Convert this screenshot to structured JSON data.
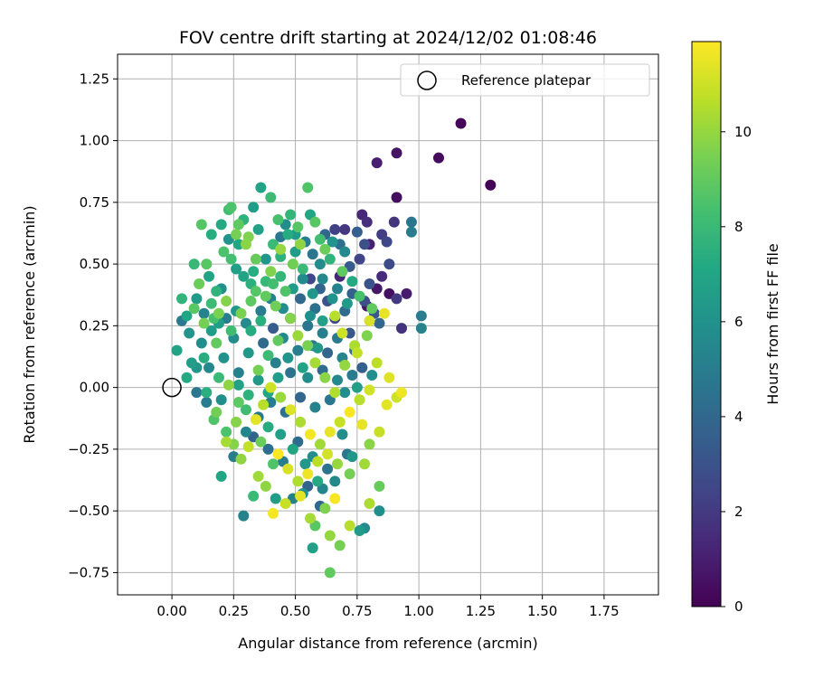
{
  "chart_data": {
    "type": "scatter",
    "title": "FOV centre drift starting at 2024/12/02 01:08:46",
    "xlabel": "Angular distance from reference (arcmin)",
    "ylabel": "Rotation from reference (arcmin)",
    "xlim": [
      -0.22,
      1.97
    ],
    "ylim": [
      -0.84,
      1.35
    ],
    "xticks": [
      "0.00",
      "0.25",
      "0.50",
      "0.75",
      "1.00",
      "1.25",
      "1.50",
      "1.75"
    ],
    "xtick_values": [
      0,
      0.25,
      0.5,
      0.75,
      1.0,
      1.25,
      1.5,
      1.75
    ],
    "yticks": [
      "−0.75",
      "−0.50",
      "−0.25",
      "0.00",
      "0.25",
      "0.50",
      "0.75",
      "1.00",
      "1.25"
    ],
    "ytick_values": [
      -0.75,
      -0.5,
      -0.25,
      0,
      0.25,
      0.5,
      0.75,
      1.0,
      1.25
    ],
    "grid": true,
    "legend": {
      "placement": "top-right",
      "label": "Reference platepar"
    },
    "reference_point": {
      "x": 0.0,
      "y": 0.0
    },
    "colorbar": {
      "label": "Hours from first FF file",
      "colormap": "viridis",
      "min": 0,
      "max": 11.9,
      "ticks": [
        "0",
        "2",
        "4",
        "6",
        "8",
        "10"
      ],
      "tick_values": [
        0,
        2,
        4,
        6,
        8,
        10
      ]
    },
    "points": [
      [
        1.29,
        0.82,
        0.1
      ],
      [
        1.17,
        1.07,
        0.2
      ],
      [
        1.08,
        0.93,
        0.3
      ],
      [
        0.91,
        0.95,
        0.6
      ],
      [
        0.83,
        0.91,
        1.0
      ],
      [
        0.91,
        0.77,
        0.4
      ],
      [
        0.77,
        0.7,
        1.3
      ],
      [
        0.79,
        0.67,
        1.6
      ],
      [
        0.9,
        0.67,
        1.8
      ],
      [
        0.85,
        0.62,
        2.2
      ],
      [
        0.87,
        0.59,
        2.6
      ],
      [
        0.78,
        0.58,
        2.9
      ],
      [
        0.85,
        0.45,
        1.5
      ],
      [
        0.83,
        0.4,
        0.7
      ],
      [
        0.88,
        0.38,
        0.5
      ],
      [
        0.95,
        0.38,
        0.9
      ],
      [
        0.91,
        0.36,
        2.0
      ],
      [
        0.8,
        0.42,
        3.1
      ],
      [
        0.76,
        0.52,
        2.4
      ],
      [
        0.72,
        0.49,
        3.4
      ],
      [
        0.68,
        0.45,
        1.2
      ],
      [
        0.7,
        0.64,
        1.9
      ],
      [
        0.66,
        0.64,
        2.3
      ],
      [
        0.75,
        0.63,
        3.6
      ],
      [
        0.97,
        0.67,
        4.6
      ],
      [
        0.97,
        0.63,
        4.9
      ],
      [
        1.01,
        0.29,
        5.0
      ],
      [
        1.01,
        0.24,
        5.3
      ],
      [
        0.8,
        0.58,
        1.1
      ],
      [
        0.88,
        0.5,
        2.7
      ],
      [
        0.93,
        0.24,
        1.7
      ],
      [
        0.82,
        0.3,
        3.3
      ],
      [
        0.79,
        0.33,
        0.8
      ],
      [
        0.84,
        0.26,
        3.9
      ],
      [
        0.78,
        0.35,
        2.8
      ],
      [
        0.73,
        0.38,
        3.7
      ],
      [
        0.7,
        0.31,
        4.2
      ],
      [
        0.63,
        0.35,
        3.0
      ],
      [
        0.66,
        0.28,
        2.6
      ],
      [
        0.6,
        0.4,
        3.8
      ],
      [
        0.58,
        0.32,
        4.4
      ],
      [
        0.56,
        0.44,
        2.5
      ],
      [
        0.52,
        0.36,
        4.0
      ],
      [
        0.48,
        0.28,
        3.5
      ],
      [
        0.55,
        0.25,
        4.6
      ],
      [
        0.61,
        0.22,
        5.1
      ],
      [
        0.67,
        0.2,
        4.8
      ],
      [
        0.72,
        0.22,
        3.2
      ],
      [
        0.74,
        0.15,
        4.3
      ],
      [
        0.69,
        0.12,
        5.4
      ],
      [
        0.63,
        0.14,
        3.9
      ],
      [
        0.57,
        0.17,
        4.7
      ],
      [
        0.51,
        0.15,
        5.0
      ],
      [
        0.45,
        0.2,
        5.6
      ],
      [
        0.41,
        0.24,
        3.4
      ],
      [
        0.37,
        0.18,
        4.1
      ],
      [
        0.42,
        0.1,
        5.2
      ],
      [
        0.48,
        0.06,
        4.5
      ],
      [
        0.55,
        0.04,
        5.8
      ],
      [
        0.61,
        0.07,
        4.2
      ],
      [
        0.67,
        0.03,
        5.5
      ],
      [
        0.73,
        0.05,
        4.9
      ],
      [
        0.77,
        0.08,
        3.6
      ],
      [
        0.7,
        -0.02,
        5.9
      ],
      [
        0.64,
        -0.05,
        4.6
      ],
      [
        0.58,
        -0.08,
        5.3
      ],
      [
        0.52,
        -0.04,
        3.9
      ],
      [
        0.46,
        -0.1,
        4.4
      ],
      [
        0.4,
        -0.06,
        5.1
      ],
      [
        0.35,
        -0.12,
        4.8
      ],
      [
        0.33,
        -0.2,
        3.7
      ],
      [
        0.39,
        -0.25,
        4.3
      ],
      [
        0.45,
        -0.3,
        5.0
      ],
      [
        0.51,
        -0.22,
        4.1
      ],
      [
        0.57,
        -0.28,
        5.7
      ],
      [
        0.63,
        -0.33,
        4.5
      ],
      [
        0.55,
        -0.4,
        3.8
      ],
      [
        0.49,
        -0.45,
        5.2
      ],
      [
        0.6,
        -0.48,
        4.0
      ],
      [
        0.66,
        -0.38,
        5.5
      ],
      [
        0.71,
        -0.27,
        4.6
      ],
      [
        0.29,
        -0.52,
        5.3
      ],
      [
        0.84,
        -0.5,
        5.9
      ],
      [
        0.78,
        -0.57,
        5.6
      ],
      [
        0.25,
        -0.28,
        4.9
      ],
      [
        0.3,
        -0.18,
        5.4
      ],
      [
        0.2,
        -0.05,
        5.8
      ],
      [
        0.14,
        -0.06,
        5.0
      ],
      [
        0.1,
        -0.02,
        4.7
      ],
      [
        0.15,
        0.08,
        5.5
      ],
      [
        0.21,
        0.12,
        6.0
      ],
      [
        0.27,
        0.06,
        5.2
      ],
      [
        0.31,
        0.14,
        6.3
      ],
      [
        0.25,
        0.2,
        5.7
      ],
      [
        0.19,
        0.26,
        6.6
      ],
      [
        0.13,
        0.3,
        5.3
      ],
      [
        0.07,
        0.22,
        6.1
      ],
      [
        0.04,
        0.27,
        4.8
      ],
      [
        0.02,
        0.15,
        6.9
      ],
      [
        0.06,
        0.04,
        7.2
      ],
      [
        0.1,
        0.36,
        6.4
      ],
      [
        0.15,
        0.45,
        7.0
      ],
      [
        0.2,
        0.4,
        5.9
      ],
      [
        0.26,
        0.48,
        6.7
      ],
      [
        0.32,
        0.42,
        7.5
      ],
      [
        0.38,
        0.52,
        6.2
      ],
      [
        0.44,
        0.45,
        7.8
      ],
      [
        0.5,
        0.55,
        6.5
      ],
      [
        0.47,
        0.62,
        7.3
      ],
      [
        0.41,
        0.58,
        8.0
      ],
      [
        0.35,
        0.64,
        6.8
      ],
      [
        0.29,
        0.68,
        7.6
      ],
      [
        0.23,
        0.72,
        8.2
      ],
      [
        0.27,
        0.58,
        7.1
      ],
      [
        0.21,
        0.55,
        8.5
      ],
      [
        0.16,
        0.62,
        7.4
      ],
      [
        0.12,
        0.66,
        8.7
      ],
      [
        0.09,
        0.5,
        7.9
      ],
      [
        0.36,
        0.81,
        6.9
      ],
      [
        0.4,
        0.77,
        8.1
      ],
      [
        0.55,
        0.81,
        8.6
      ],
      [
        0.56,
        0.7,
        7.0
      ],
      [
        0.6,
        0.6,
        8.3
      ],
      [
        0.64,
        0.52,
        7.7
      ],
      [
        0.69,
        0.47,
        8.9
      ],
      [
        0.73,
        0.43,
        7.2
      ],
      [
        0.76,
        0.37,
        8.4
      ],
      [
        0.81,
        0.32,
        9.0
      ],
      [
        0.58,
        0.67,
        8.8
      ],
      [
        0.62,
        0.56,
        9.2
      ],
      [
        0.53,
        0.48,
        8.0
      ],
      [
        0.46,
        0.39,
        8.6
      ],
      [
        0.42,
        0.33,
        9.3
      ],
      [
        0.36,
        0.27,
        7.5
      ],
      [
        0.32,
        0.35,
        8.9
      ],
      [
        0.28,
        0.3,
        9.5
      ],
      [
        0.24,
        0.23,
        8.2
      ],
      [
        0.18,
        0.18,
        9.0
      ],
      [
        0.22,
        0.35,
        9.7
      ],
      [
        0.17,
        0.28,
        8.4
      ],
      [
        0.26,
        0.62,
        9.4
      ],
      [
        0.3,
        0.58,
        9.8
      ],
      [
        0.34,
        0.52,
        9.1
      ],
      [
        0.4,
        0.47,
        9.6
      ],
      [
        0.44,
        0.56,
        10.0
      ],
      [
        0.49,
        0.5,
        9.3
      ],
      [
        0.52,
        0.58,
        9.9
      ],
      [
        0.48,
        0.28,
        9.7
      ],
      [
        0.51,
        0.21,
        10.1
      ],
      [
        0.55,
        0.17,
        9.5
      ],
      [
        0.58,
        0.1,
        10.3
      ],
      [
        0.62,
        0.04,
        9.8
      ],
      [
        0.66,
        -0.02,
        10.5
      ],
      [
        0.7,
        0.09,
        10.0
      ],
      [
        0.74,
        0.17,
        10.4
      ],
      [
        0.79,
        0.21,
        9.6
      ],
      [
        0.66,
        0.29,
        10.6
      ],
      [
        0.69,
        0.22,
        11.0
      ],
      [
        0.75,
        0.14,
        10.8
      ],
      [
        0.8,
        0.27,
        11.2
      ],
      [
        0.86,
        0.3,
        11.5
      ],
      [
        0.83,
        0.1,
        10.7
      ],
      [
        0.88,
        0.04,
        11.3
      ],
      [
        0.93,
        -0.02,
        11.6
      ],
      [
        0.91,
        -0.04,
        11.0
      ],
      [
        0.87,
        -0.07,
        11.4
      ],
      [
        0.8,
        -0.01,
        11.1
      ],
      [
        0.76,
        -0.05,
        10.6
      ],
      [
        0.72,
        -0.1,
        11.8
      ],
      [
        0.68,
        -0.14,
        10.9
      ],
      [
        0.64,
        -0.18,
        11.5
      ],
      [
        0.6,
        -0.23,
        10.2
      ],
      [
        0.56,
        -0.19,
        11.7
      ],
      [
        0.52,
        -0.14,
        10.4
      ],
      [
        0.48,
        -0.09,
        11.3
      ],
      [
        0.44,
        -0.04,
        10.1
      ],
      [
        0.4,
        0.0,
        11.0
      ],
      [
        0.37,
        -0.07,
        10.6
      ],
      [
        0.34,
        -0.13,
        11.4
      ],
      [
        0.31,
        -0.24,
        10.8
      ],
      [
        0.28,
        -0.29,
        9.9
      ],
      [
        0.22,
        -0.22,
        10.3
      ],
      [
        0.26,
        -0.14,
        9.7
      ],
      [
        0.43,
        -0.27,
        11.9
      ],
      [
        0.47,
        -0.33,
        11.2
      ],
      [
        0.51,
        -0.38,
        10.5
      ],
      [
        0.55,
        -0.35,
        11.6
      ],
      [
        0.59,
        -0.3,
        10.7
      ],
      [
        0.63,
        -0.27,
        11.1
      ],
      [
        0.67,
        -0.31,
        10.0
      ],
      [
        0.72,
        -0.35,
        9.4
      ],
      [
        0.78,
        -0.31,
        10.2
      ],
      [
        0.8,
        -0.23,
        9.8
      ],
      [
        0.77,
        -0.15,
        11.5
      ],
      [
        0.84,
        -0.18,
        10.9
      ],
      [
        0.41,
        -0.51,
        11.7
      ],
      [
        0.46,
        -0.47,
        10.9
      ],
      [
        0.52,
        -0.44,
        11.4
      ],
      [
        0.56,
        -0.53,
        10.3
      ],
      [
        0.62,
        -0.49,
        9.6
      ],
      [
        0.66,
        -0.45,
        11.8
      ],
      [
        0.72,
        -0.56,
        10.6
      ],
      [
        0.64,
        -0.6,
        10.0
      ],
      [
        0.68,
        -0.64,
        9.4
      ],
      [
        0.58,
        -0.56,
        8.8
      ],
      [
        0.64,
        -0.75,
        9.0
      ],
      [
        0.57,
        -0.65,
        6.8
      ],
      [
        0.76,
        -0.58,
        6.4
      ],
      [
        0.84,
        -0.4,
        9.1
      ],
      [
        0.8,
        -0.47,
        10.4
      ],
      [
        0.2,
        -0.36,
        7.0
      ],
      [
        0.17,
        -0.13,
        8.6
      ],
      [
        0.23,
        0.01,
        9.9
      ],
      [
        0.27,
        -0.06,
        8.9
      ],
      [
        0.35,
        0.07,
        9.4
      ],
      [
        0.39,
        0.13,
        8.1
      ],
      [
        0.43,
        0.19,
        9.0
      ],
      [
        0.32,
        0.23,
        7.3
      ],
      [
        0.29,
        0.45,
        6.9
      ],
      [
        0.34,
        0.39,
        8.7
      ],
      [
        0.38,
        0.43,
        7.9
      ],
      [
        0.24,
        0.52,
        8.3
      ],
      [
        0.18,
        0.39,
        7.7
      ],
      [
        0.13,
        0.12,
        7.4
      ],
      [
        0.08,
        0.1,
        6.6
      ],
      [
        0.11,
        0.42,
        9.2
      ],
      [
        0.14,
        0.5,
        8.8
      ],
      [
        0.19,
        0.3,
        9.5
      ],
      [
        0.23,
        0.6,
        6.1
      ],
      [
        0.33,
        0.73,
        6.5
      ],
      [
        0.46,
        0.66,
        5.8
      ],
      [
        0.5,
        0.62,
        6.4
      ],
      [
        0.53,
        0.44,
        5.6
      ],
      [
        0.57,
        0.38,
        6.2
      ],
      [
        0.61,
        0.44,
        5.5
      ],
      [
        0.65,
        0.36,
        6.0
      ],
      [
        0.61,
        0.27,
        6.7
      ],
      [
        0.56,
        0.29,
        5.9
      ],
      [
        0.49,
        0.4,
        6.5
      ],
      [
        0.45,
        0.32,
        5.7
      ],
      [
        0.59,
        0.16,
        6.3
      ],
      [
        0.53,
        0.08,
        6.9
      ],
      [
        0.47,
        0.12,
        6.1
      ],
      [
        0.43,
        0.04,
        6.6
      ],
      [
        0.39,
        -0.02,
        7.1
      ],
      [
        0.35,
        0.03,
        6.4
      ],
      [
        0.31,
        -0.03,
        7.6
      ],
      [
        0.27,
        0.01,
        6.8
      ],
      [
        0.39,
        -0.16,
        7.3
      ],
      [
        0.44,
        -0.19,
        6.7
      ],
      [
        0.49,
        -0.25,
        7.0
      ],
      [
        0.54,
        -0.31,
        6.3
      ],
      [
        0.59,
        -0.38,
        7.2
      ],
      [
        0.42,
        -0.45,
        6.5
      ],
      [
        0.53,
        -0.43,
        5.9
      ],
      [
        0.61,
        -0.41,
        5.4
      ],
      [
        0.69,
        -0.19,
        5.8
      ],
      [
        0.73,
        -0.28,
        6.2
      ],
      [
        0.75,
        0.0,
        6.7
      ],
      [
        0.81,
        0.05,
        5.9
      ],
      [
        0.71,
        0.34,
        6.4
      ],
      [
        0.67,
        0.4,
        5.3
      ],
      [
        0.6,
        0.5,
        5.7
      ],
      [
        0.65,
        0.59,
        6.1
      ],
      [
        0.7,
        0.55,
        5.5
      ],
      [
        0.54,
        0.59,
        5.1
      ],
      [
        0.57,
        0.54,
        4.6
      ],
      [
        0.62,
        0.62,
        3.9
      ],
      [
        0.68,
        0.58,
        4.4
      ],
      [
        0.44,
        0.61,
        4.8
      ],
      [
        0.4,
        0.36,
        5.3
      ],
      [
        0.36,
        0.31,
        4.9
      ],
      [
        0.3,
        0.26,
        5.6
      ],
      [
        0.26,
        0.31,
        6.2
      ],
      [
        0.22,
        0.28,
        5.1
      ],
      [
        0.16,
        0.23,
        6.5
      ],
      [
        0.12,
        0.18,
        5.8
      ],
      [
        0.06,
        0.29,
        7.0
      ],
      [
        0.2,
        0.66,
        7.2
      ],
      [
        0.24,
        0.73,
        8.5
      ],
      [
        0.27,
        0.66,
        8.9
      ],
      [
        0.31,
        0.61,
        9.6
      ],
      [
        0.43,
        0.68,
        8.4
      ],
      [
        0.48,
        0.7,
        7.8
      ],
      [
        0.51,
        0.65,
        8.7
      ],
      [
        0.44,
        0.53,
        7.6
      ],
      [
        0.41,
        0.42,
        8.3
      ],
      [
        0.38,
        0.37,
        9.0
      ],
      [
        0.33,
        0.47,
        7.4
      ],
      [
        0.16,
        0.34,
        8.1
      ],
      [
        0.13,
        0.26,
        9.4
      ],
      [
        0.09,
        0.32,
        8.8
      ],
      [
        0.04,
        0.36,
        7.7
      ],
      [
        0.1,
        0.08,
        6.2
      ],
      [
        0.14,
        -0.02,
        7.5
      ],
      [
        0.19,
        0.04,
        8.0
      ],
      [
        0.18,
        -0.1,
        9.3
      ],
      [
        0.22,
        -0.18,
        8.5
      ],
      [
        0.25,
        -0.23,
        9.7
      ],
      [
        0.3,
        -0.09,
        8.2
      ],
      [
        0.36,
        -0.22,
        9.2
      ],
      [
        0.41,
        -0.31,
        8.6
      ],
      [
        0.38,
        -0.4,
        9.9
      ],
      [
        0.33,
        -0.44,
        8.0
      ],
      [
        0.35,
        -0.36,
        10.2
      ]
    ]
  }
}
